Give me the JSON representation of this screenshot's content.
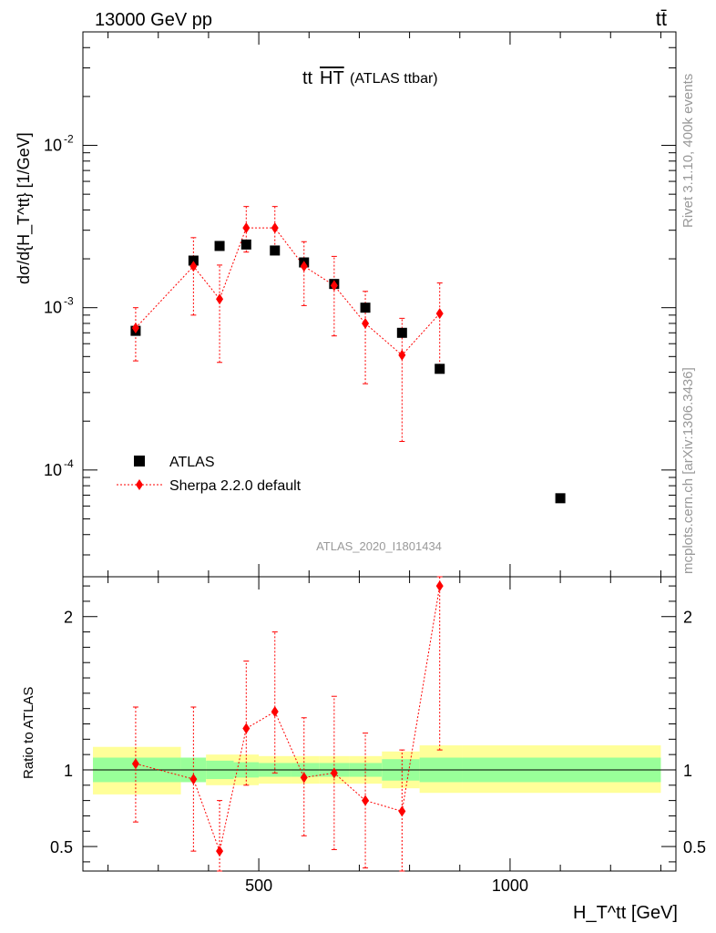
{
  "header": {
    "left": "13000 GeV pp",
    "right": "tt̄"
  },
  "side": {
    "top": "Rivet 3.1.10,  400k events",
    "bottom": "mcplots.cern.ch [arXiv:1306.3436]"
  },
  "colors": {
    "data": "#000000",
    "mc": "#ff0000",
    "band_inner": "#99ff99",
    "band_outer": "#ffff99"
  },
  "chart_data": [
    {
      "type": "scatter",
      "title": "tt H T (ATLAS ttbar)",
      "title_main": "tt",
      "title_over": "HT",
      "title_sub": "(ATLAS ttbar)",
      "ylabel": "dσ/d{H_T^tt} [1/GeV]",
      "watermark": "ATLAS_2020_I1801434",
      "yscale": "log",
      "xlim": [
        150,
        1330
      ],
      "ylim": [
        2.2e-05,
        0.05
      ],
      "ytick_labels": [
        "10^-4",
        "10^-3",
        "10^-2"
      ],
      "legend": [
        "ATLAS",
        "Sherpa 2.2.0 default"
      ],
      "legend_position": "lower-left",
      "series": [
        {
          "name": "ATLAS",
          "x": [
            255,
            370,
            422,
            475,
            532,
            590,
            650,
            712,
            785,
            860,
            1100
          ],
          "y": [
            0.00072,
            0.00195,
            0.0024,
            0.00245,
            0.00225,
            0.0019,
            0.0014,
            0.001,
            0.0007,
            0.00042,
            6.7e-05
          ]
        },
        {
          "name": "Sherpa 2.2.0 default",
          "x": [
            255,
            370,
            422,
            475,
            532,
            590,
            650,
            712,
            785,
            860
          ],
          "y": [
            0.00075,
            0.0018,
            0.00113,
            0.0031,
            0.0031,
            0.0018,
            0.00137,
            0.0008,
            0.00051,
            0.00092
          ],
          "err_low": [
            0.00028,
            0.0009,
            0.00067,
            0.0009,
            0.0009,
            0.00077,
            0.0007,
            0.00046,
            0.00036,
            0.00048
          ],
          "err_high": [
            0.00025,
            0.0009,
            0.0007,
            0.0011,
            0.0011,
            0.00075,
            0.0007,
            0.00046,
            0.00035,
            0.0005
          ]
        }
      ]
    },
    {
      "type": "scatter",
      "xlabel": "H_T^tt [GeV]",
      "ylabel": "Ratio to ATLAS",
      "xlim": [
        150,
        1330
      ],
      "ylim": [
        0.34,
        2.26
      ],
      "xticks": [
        500,
        1000
      ],
      "yticks": [
        0.5,
        1,
        2
      ],
      "reference": 1,
      "bands": {
        "edges": [
          170,
          345,
          395,
          450,
          500,
          565,
          620,
          680,
          745,
          820,
          905,
          1300
        ],
        "inner_low": [
          0.92,
          0.92,
          0.94,
          0.95,
          0.955,
          0.955,
          0.955,
          0.955,
          0.93,
          0.92,
          0.92
        ],
        "inner_high": [
          1.08,
          1.08,
          1.06,
          1.05,
          1.045,
          1.045,
          1.045,
          1.045,
          1.07,
          1.08,
          1.08
        ],
        "outer_low": [
          0.84,
          0.92,
          0.9,
          0.9,
          0.91,
          0.91,
          0.91,
          0.91,
          0.88,
          0.85,
          0.85
        ],
        "outer_high": [
          1.15,
          1.08,
          1.1,
          1.1,
          1.09,
          1.09,
          1.09,
          1.09,
          1.12,
          1.16,
          1.16
        ]
      },
      "series": [
        {
          "name": "Sherpa 2.2.0 default",
          "x": [
            255,
            370,
            422,
            475,
            532,
            590,
            650,
            712,
            785,
            860
          ],
          "y": [
            1.04,
            0.94,
            0.47,
            1.27,
            1.38,
            0.95,
            0.98,
            0.8,
            0.73,
            2.2
          ],
          "err_low": [
            0.38,
            0.47,
            0.14,
            0.37,
            0.4,
            0.38,
            0.5,
            0.44,
            0.4,
            1.07
          ],
          "err_high": [
            0.37,
            0.47,
            0.33,
            0.44,
            0.52,
            0.39,
            0.5,
            0.44,
            0.4,
            1.1
          ]
        }
      ]
    }
  ]
}
